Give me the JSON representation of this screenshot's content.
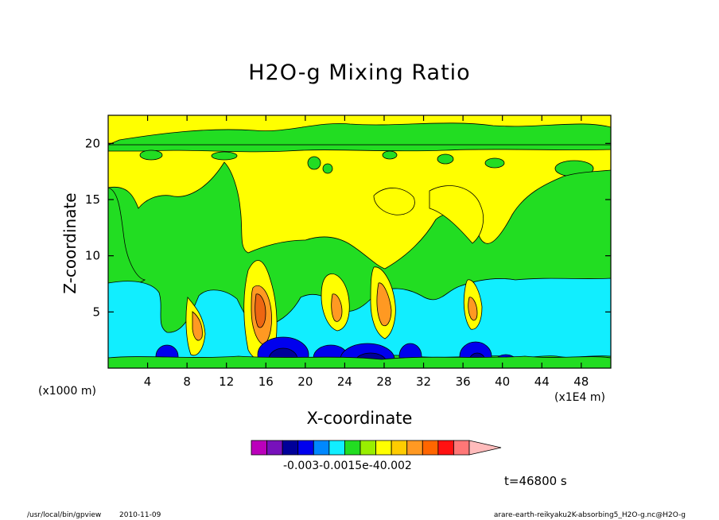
{
  "title": "H2O-g Mixing Ratio",
  "colors": {
    "yellow": "#ffff00",
    "green": "#22dd22",
    "cyan": "#11eeff",
    "orange": "#ff9922",
    "dark_orange": "#ee6611",
    "blue": "#0000ee",
    "navy": "#000099",
    "purple": "#7711bb"
  },
  "colorbar": {
    "colors": [
      "#bb00bb",
      "#7711bb",
      "#000099",
      "#0000ee",
      "#0088ff",
      "#11eeff",
      "#22dd22",
      "#99ee00",
      "#ffff00",
      "#ffcc00",
      "#ff9922",
      "#ff6600",
      "#ff1111",
      "#ff7777",
      "#ffbbbb"
    ],
    "labels": "-0.003-0.0015e-40.002"
  },
  "time_label": "t=46800 s",
  "footer": {
    "program": "/usr/local/bin/gpview",
    "date": "2010-11-09",
    "source": "arare-earth-reikyaku2K-absorbing5_H2O-g.nc@H2O-g"
  },
  "chart_data": {
    "type": "heatmap",
    "title": "H2O-g Mixing Ratio",
    "xlabel": "X-coordinate",
    "ylabel": "Z-coordinate",
    "x_unit": "(x1E4 m)",
    "y_unit": "(x1000 m)",
    "xlim": [
      0,
      51
    ],
    "ylim": [
      0,
      22.5
    ],
    "x_ticks": [
      4,
      8,
      12,
      16,
      20,
      24,
      28,
      32,
      36,
      40,
      44,
      48
    ],
    "y_ticks": [
      5,
      10,
      15,
      20
    ],
    "colorbar_labels": [
      -0.003,
      -0.0015,
      "e-4",
      0.002
    ],
    "regions": {
      "stratosphere_band_z": [
        19.5,
        21
      ],
      "moist_cyan_layer_z": [
        1,
        7.5
      ],
      "deep_convection_x": [
        14,
        16.5
      ],
      "updraft_plumes_x": [
        9,
        15.5,
        23,
        28,
        37
      ],
      "dry_blue_pockets_x": [
        5,
        21,
        27,
        31,
        38
      ]
    }
  }
}
